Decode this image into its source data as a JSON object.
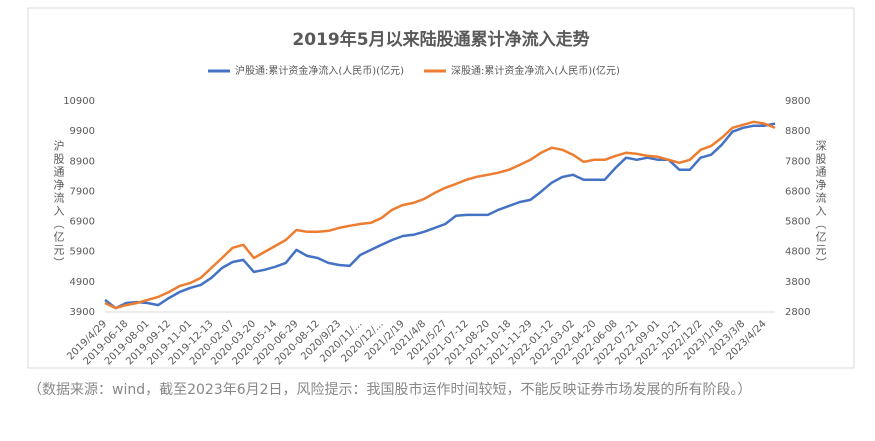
{
  "chart_data": {
    "type": "line",
    "title": "2019年5月以来陆股通累计净流入走势",
    "y_label": "沪股通净流入（亿元）",
    "y2_label": "深股通净流入（亿元）",
    "caption": "（数据来源：wind，截至2023年6月2日，风险提示：我国股市运作时间较短，不能反映证券市场发展的所有阶段。）",
    "legend": "top",
    "grid": false,
    "categories": [
      "2019/4/29",
      null,
      "2019-06-18",
      null,
      "2019-08-01",
      null,
      "2019-09-12",
      null,
      "2019-11-01",
      null,
      "2019-12-13",
      null,
      "2020-02-07",
      null,
      "2020-03-20",
      null,
      "2020-05-14",
      null,
      "2020-06-29",
      null,
      "2020-08-12",
      null,
      "2020/9/23",
      null,
      "2020/11/...",
      null,
      "2020/12/...",
      null,
      "2021/2/19",
      null,
      "2021/4/8",
      null,
      "2021/5/27",
      null,
      "2021-07-12",
      null,
      "2021-08-20",
      null,
      "2021-10-18",
      null,
      "2021-11-29",
      null,
      "2022-01-12",
      null,
      "2022-03-02",
      null,
      "2022-04-20",
      null,
      "2022-06-08",
      null,
      "2022-07-21",
      null,
      "2022-09-01",
      null,
      "2022-10-21",
      null,
      "2022/12/2",
      null,
      "2023/1/18",
      null,
      "2023/3/8",
      null,
      "2023/4/24",
      null
    ],
    "series": [
      {
        "name": "沪股通:累计资金净流入(人民币)(亿元)",
        "color": "#4472c4",
        "values": [
          4300,
          4030,
          4200,
          4230,
          4200,
          4130,
          4360,
          4560,
          4700,
          4800,
          5030,
          5360,
          5560,
          5630,
          5230,
          5300,
          5400,
          5530,
          5960,
          5760,
          5690,
          5530,
          5460,
          5430,
          5790,
          5960,
          6130,
          6290,
          6420,
          6460,
          6560,
          6690,
          6820,
          7090,
          7120,
          7120,
          7120,
          7290,
          7420,
          7550,
          7620,
          7890,
          8190,
          8380,
          8450,
          8290,
          8290,
          8290,
          8680,
          9020,
          8950,
          9020,
          8950,
          8950,
          8620,
          8620,
          9020,
          9120,
          9450,
          9880,
          10010,
          10080,
          10080,
          10150
        ]
      },
      {
        "name": "深股通:累计资金净流入(人民币)(亿元)",
        "color": "#ed7d31",
        "axis": "y2",
        "values": [
          3100,
          2930,
          3030,
          3100,
          3200,
          3300,
          3460,
          3660,
          3760,
          3930,
          4260,
          4590,
          4930,
          5030,
          4590,
          4790,
          4990,
          5190,
          5520,
          5460,
          5460,
          5490,
          5590,
          5660,
          5720,
          5760,
          5920,
          6190,
          6350,
          6420,
          6550,
          6750,
          6920,
          7050,
          7190,
          7290,
          7350,
          7420,
          7520,
          7680,
          7850,
          8080,
          8250,
          8180,
          8020,
          7780,
          7850,
          7850,
          7980,
          8080,
          8050,
          7980,
          7950,
          7850,
          7750,
          7850,
          8180,
          8310,
          8580,
          8910,
          9010,
          9110,
          9050,
          8910
        ]
      }
    ],
    "ylim": [
      3900,
      10900
    ],
    "yticks": [
      3900,
      4900,
      5900,
      6900,
      7900,
      8900,
      9900,
      10900
    ],
    "y2lim": [
      2800,
      9800
    ],
    "y2ticks": [
      2800,
      3800,
      4800,
      5800,
      6800,
      7800,
      8800,
      9800
    ]
  }
}
